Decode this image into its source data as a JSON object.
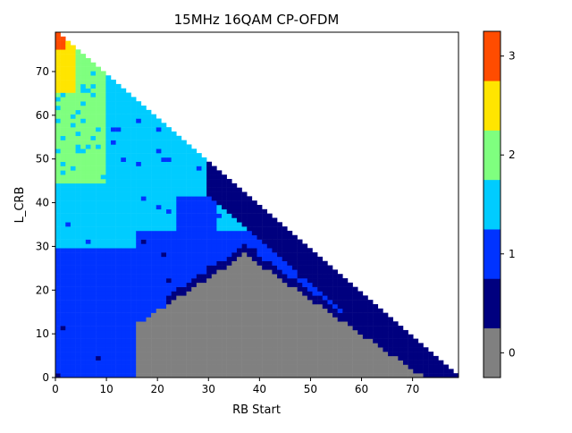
{
  "chart_data": {
    "type": "heatmap",
    "title": "15MHz 16QAM CP-OFDM",
    "xlabel": "RB Start",
    "ylabel": "L_CRB",
    "xlim": [
      0,
      79
    ],
    "ylim": [
      0,
      79
    ],
    "x_ticks": [
      "0",
      "10",
      "20",
      "30",
      "40",
      "50",
      "60",
      "70"
    ],
    "y_ticks": [
      "0",
      "10",
      "20",
      "30",
      "40",
      "50",
      "60",
      "70"
    ],
    "grid": false,
    "domain": "RB Start + L_CRB <= 79",
    "colorbar": {
      "range": [
        -0.25,
        3.25
      ],
      "ticks": [
        "0",
        "1",
        "2",
        "3"
      ],
      "levels": [
        {
          "from": -0.25,
          "to": 0.25,
          "color": "#808080"
        },
        {
          "from": 0.25,
          "to": 0.75,
          "color": "#00007f"
        },
        {
          "from": 0.75,
          "to": 1.25,
          "color": "#0033ff"
        },
        {
          "from": 1.25,
          "to": 1.75,
          "color": "#00ccff"
        },
        {
          "from": 1.75,
          "to": 2.25,
          "color": "#7fff7f"
        },
        {
          "from": 2.25,
          "to": 2.75,
          "color": "#ffe500"
        },
        {
          "from": 2.75,
          "to": 3.25,
          "color": "#ff4c00"
        }
      ]
    },
    "regions": [
      {
        "value": 0,
        "description": "gray region: RB Start ~16-72, L_CRB 0 to ~28 (peak near RB Start 37)"
      },
      {
        "value": 0.5,
        "description": "dark navy band along the diagonal from RB Start ~30 to ~79, and just above the gray region"
      },
      {
        "value": 1,
        "description": "blue region: RB Start 0-16 for L_CRB 0-28, extending up to L_CRB ~42 near RB Start 25-30"
      },
      {
        "value": 1.5,
        "description": "cyan region: L_CRB ~28-78 near the upper-left triangle"
      },
      {
        "value": 2,
        "description": "green region: RB Start 0-10, L_CRB ~45-75"
      },
      {
        "value": 2.5,
        "description": "yellow region: RB Start 0-3, L_CRB ~65-79"
      },
      {
        "value": 3,
        "description": "orange-red cells at RB Start 0-1, L_CRB ~76-79"
      }
    ]
  }
}
